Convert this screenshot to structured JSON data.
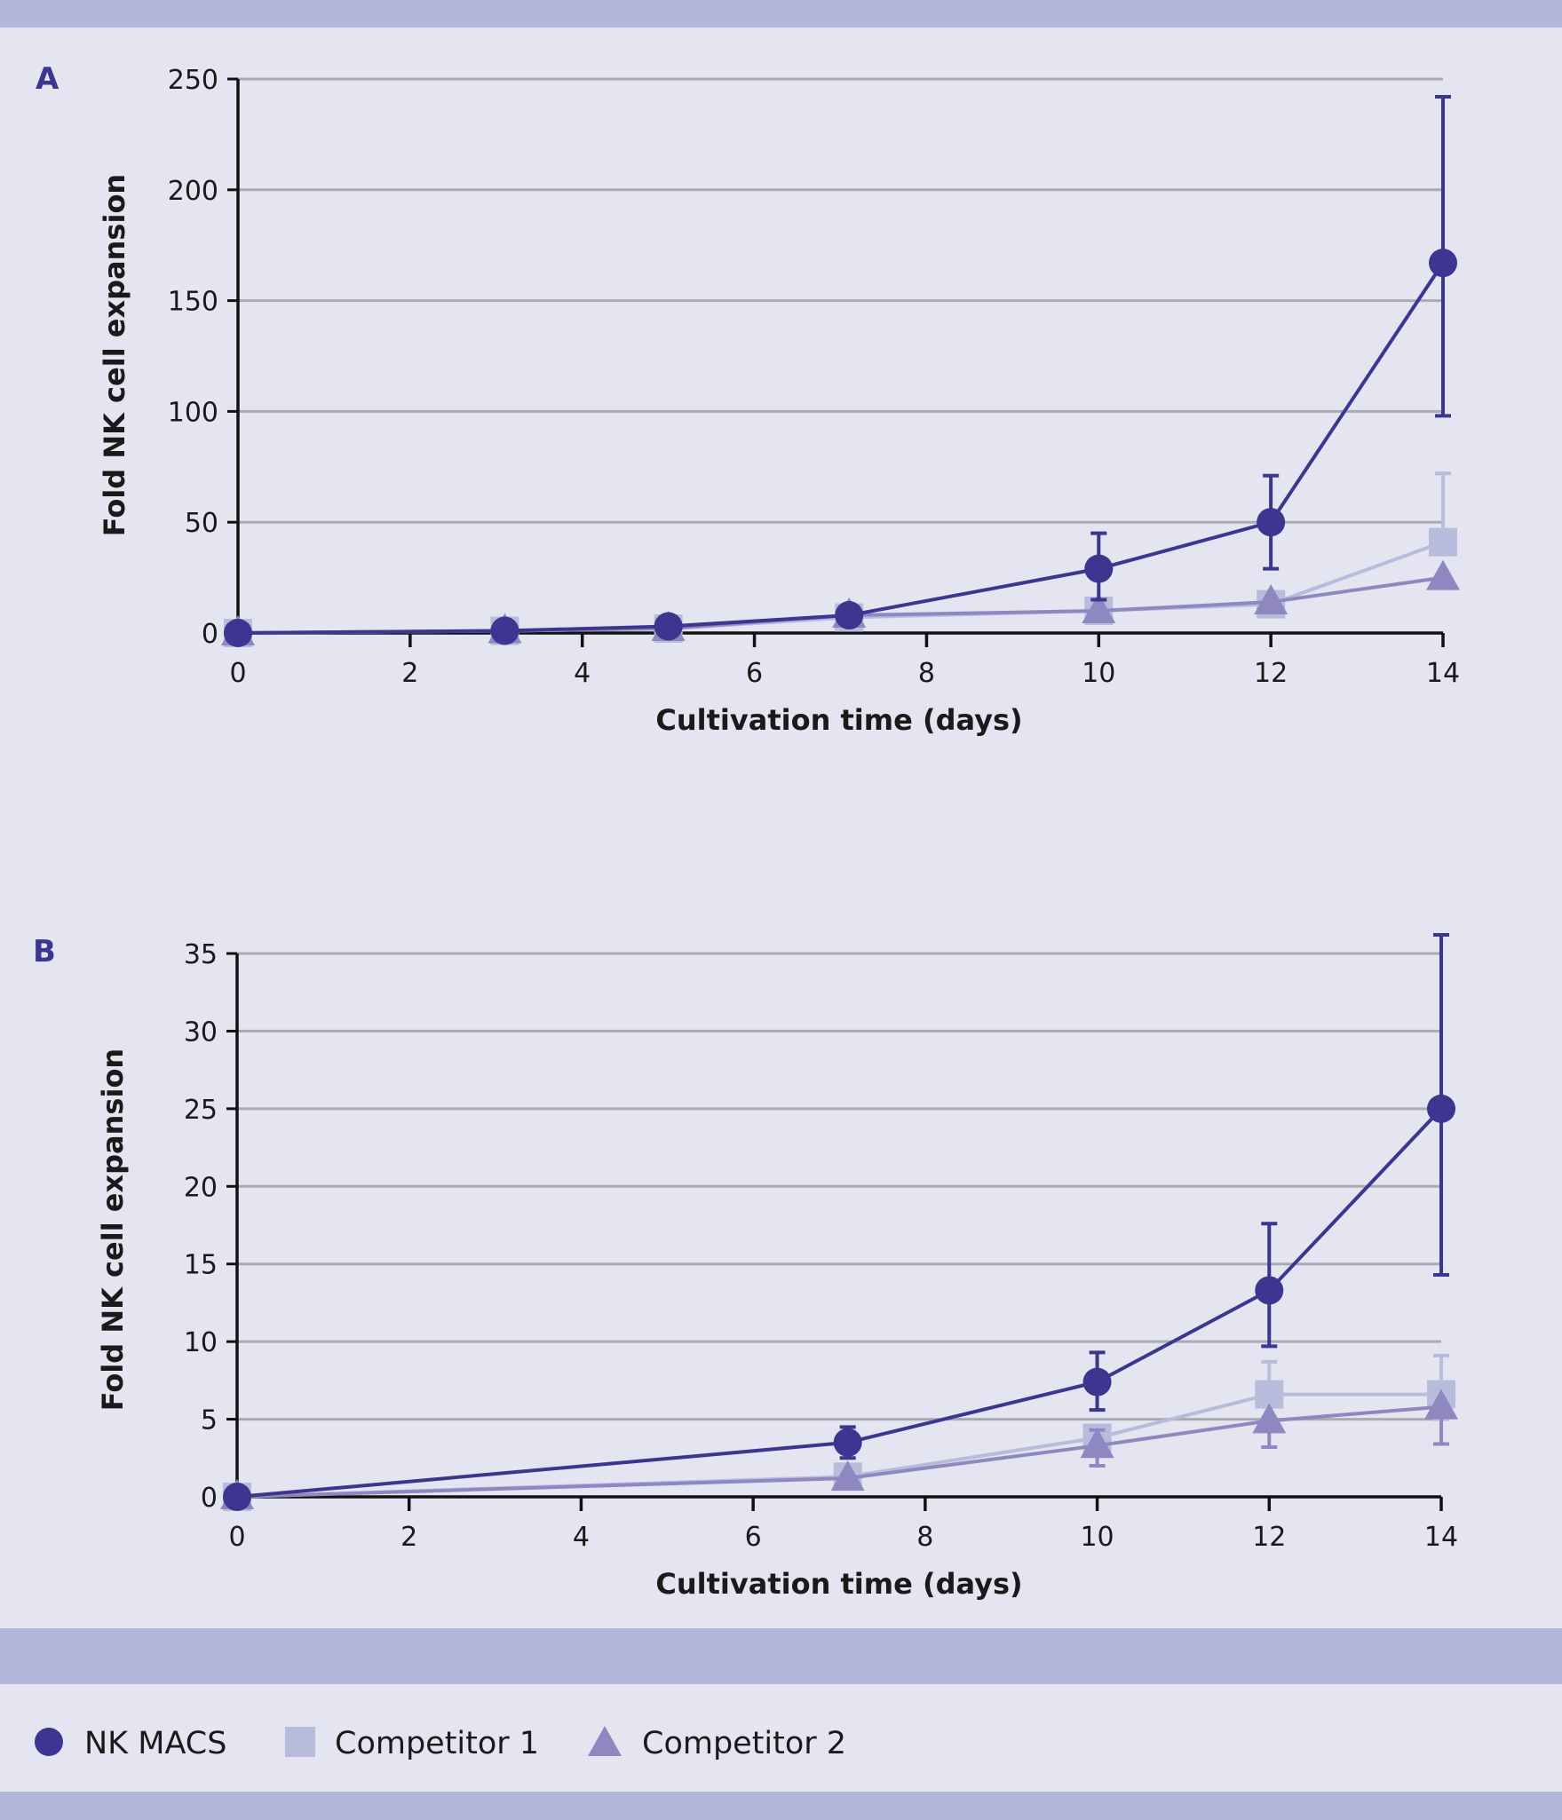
{
  "colors": {
    "background": "#e4e5f0",
    "band": "#b3b7da",
    "grid": "#a9aab3",
    "axis": "#111111"
  },
  "legend": [
    {
      "name": "NK MACS",
      "marker": "circle",
      "color": "#3d3590"
    },
    {
      "name": "Competitor 1",
      "marker": "square",
      "color": "#b7bcdc"
    },
    {
      "name": "Competitor 2",
      "marker": "triangle",
      "color": "#8f88c0"
    }
  ],
  "chart_data": [
    {
      "type": "line",
      "panel_label": "A",
      "xlabel": "Cultivation time (days)",
      "ylabel": "Fold NK cell expansion",
      "xlim": [
        0,
        14
      ],
      "ylim": [
        0,
        250
      ],
      "xticks": [
        0,
        2,
        4,
        6,
        8,
        10,
        12,
        14
      ],
      "yticks": [
        0,
        50,
        100,
        150,
        200,
        250
      ],
      "grid": true,
      "series": [
        {
          "name": "NK MACS",
          "x": [
            0,
            3.1,
            5,
            7.1,
            10,
            12,
            14
          ],
          "y": [
            0,
            1,
            3,
            8,
            29,
            50,
            167
          ],
          "err_low": [
            null,
            null,
            null,
            null,
            15,
            29,
            98
          ],
          "err_high": [
            null,
            null,
            null,
            null,
            45,
            71,
            242
          ]
        },
        {
          "name": "Competitor 1",
          "x": [
            0,
            3.1,
            5,
            7.1,
            10,
            12,
            14
          ],
          "y": [
            0,
            1,
            2,
            7,
            10,
            13,
            41
          ],
          "err_low": [
            null,
            null,
            null,
            null,
            null,
            null,
            null
          ],
          "err_high": [
            null,
            null,
            null,
            null,
            null,
            null,
            72
          ]
        },
        {
          "name": "Competitor 2",
          "x": [
            0,
            3.1,
            5,
            7.1,
            10,
            12,
            14
          ],
          "y": [
            0,
            1,
            2,
            8,
            10,
            14,
            25
          ],
          "err_low": [
            null,
            null,
            null,
            null,
            null,
            null,
            null
          ],
          "err_high": [
            null,
            null,
            null,
            null,
            null,
            null,
            null
          ]
        }
      ]
    },
    {
      "type": "line",
      "panel_label": "B",
      "xlabel": "Cultivation time (days)",
      "ylabel": "Fold NK cell expansion",
      "xlim": [
        0,
        14
      ],
      "ylim": [
        0,
        35
      ],
      "xticks": [
        0,
        2,
        4,
        6,
        8,
        10,
        12,
        14
      ],
      "yticks": [
        0,
        5,
        10,
        15,
        20,
        25,
        30,
        35
      ],
      "grid": true,
      "series": [
        {
          "name": "NK MACS",
          "x": [
            0,
            7.1,
            10,
            12,
            14
          ],
          "y": [
            0,
            3.5,
            7.4,
            13.3,
            25
          ],
          "err_low": [
            null,
            2.5,
            5.6,
            9.7,
            14.3
          ],
          "err_high": [
            null,
            4.5,
            9.3,
            17.6,
            36.2
          ]
        },
        {
          "name": "Competitor 1",
          "x": [
            0,
            7.1,
            10,
            12,
            14
          ],
          "y": [
            0,
            1.3,
            3.8,
            6.6,
            6.6
          ],
          "err_low": [
            null,
            null,
            null,
            null,
            5.0
          ],
          "err_high": [
            null,
            null,
            4.6,
            8.7,
            9.1
          ]
        },
        {
          "name": "Competitor 2",
          "x": [
            0,
            7.1,
            10,
            12,
            14
          ],
          "y": [
            0,
            1.2,
            3.3,
            4.9,
            5.8
          ],
          "err_low": [
            null,
            null,
            2.0,
            3.2,
            3.4
          ],
          "err_high": [
            null,
            null,
            4.3,
            null,
            null
          ]
        }
      ]
    }
  ]
}
